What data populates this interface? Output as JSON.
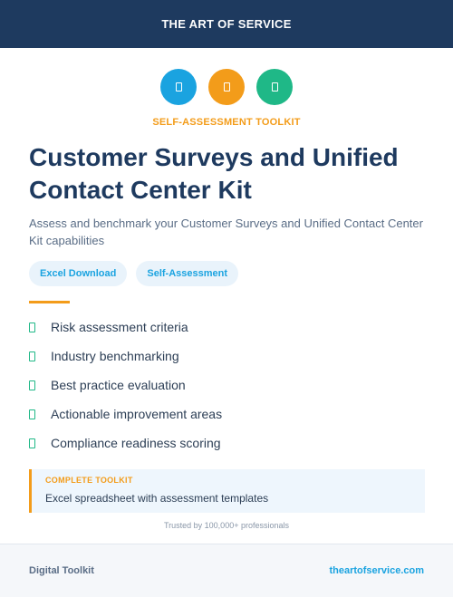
{
  "header": {
    "title": "THE ART OF SERVICE",
    "bg_color": "#1e3a5f"
  },
  "icons": [
    {
      "name": "document-icon",
      "color": "#1aa3e0"
    },
    {
      "name": "document-icon",
      "color": "#f39c1a"
    },
    {
      "name": "document-icon",
      "color": "#1fb887"
    }
  ],
  "kicker": "SELF-ASSESSMENT TOOLKIT",
  "title": "Customer Surveys and Unified Contact Center Kit",
  "description": "Assess and benchmark your Customer Surveys and Unified Contact Center Kit capabilities",
  "tags": [
    "Excel Download",
    "Self-Assessment"
  ],
  "features": [
    "Risk assessment criteria",
    "Industry benchmarking",
    "Best practice evaluation",
    "Actionable improvement areas",
    "Compliance readiness scoring"
  ],
  "callout": {
    "title": "COMPLETE TOOLKIT",
    "text": "Excel spreadsheet with assessment templates"
  },
  "trusted": "Trusted by 100,000+ professionals",
  "footer": {
    "left": "Digital Toolkit",
    "right": "theartofservice.com"
  },
  "colors": {
    "navy": "#1e3a5f",
    "accent_orange": "#f39c1a",
    "accent_blue": "#1aa3e0",
    "accent_green": "#1fb887"
  }
}
